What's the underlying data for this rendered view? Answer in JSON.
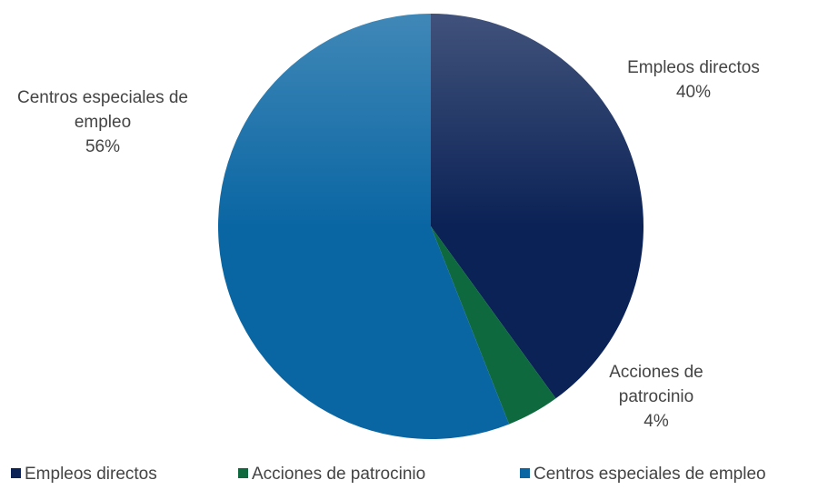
{
  "chart_data": {
    "type": "pie",
    "categories": [
      "Empleos directos",
      "Acciones de patrocinio",
      "Centros especiales de empleo"
    ],
    "values": [
      40,
      4,
      56
    ],
    "value_labels": [
      "40%",
      "4%",
      "56%"
    ],
    "colors": [
      "#0b2256",
      "#0e6a3e",
      "#0a66a3"
    ],
    "legend": "bottom"
  }
}
